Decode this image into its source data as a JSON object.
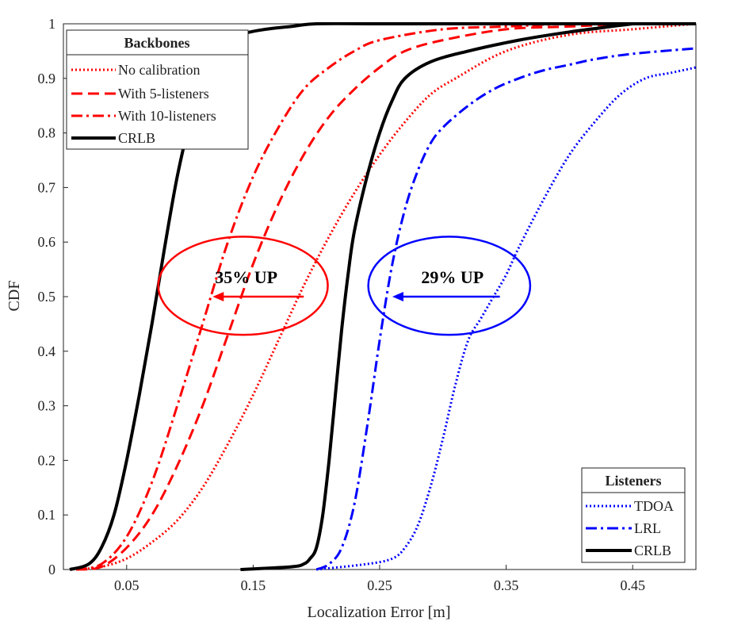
{
  "chart_data": {
    "type": "line",
    "title": "",
    "xlabel": "Localization Error [m]",
    "ylabel": "CDF",
    "xlim": [
      0,
      0.5
    ],
    "ylim": [
      0,
      1
    ],
    "xticks": [
      "0.05",
      "0.15",
      "0.25",
      "0.35",
      "0.45"
    ],
    "yticks": [
      "0",
      "0.1",
      "0.2",
      "0.3",
      "0.4",
      "0.5",
      "0.6",
      "0.7",
      "0.8",
      "0.9",
      "1"
    ],
    "grid": true,
    "colors": {
      "red": "#ff0000",
      "blue": "#0000ff",
      "black": "#000000"
    },
    "legends": [
      {
        "title": "Backbones",
        "position": "top-left",
        "entries": [
          "No calibration",
          "With 5-listeners",
          "With 10-listeners",
          "CRLB"
        ]
      },
      {
        "title": "Listeners",
        "position": "bottom-right",
        "entries": [
          "TDOA",
          "LRL",
          "CRLB"
        ]
      }
    ],
    "series": [
      {
        "group": "Backbones",
        "name": "No calibration",
        "color": "#ff0000",
        "style": "dotted",
        "x": [
          0.01,
          0.03,
          0.05,
          0.07,
          0.09,
          0.11,
          0.13,
          0.15,
          0.17,
          0.19,
          0.21,
          0.23,
          0.25,
          0.27,
          0.29,
          0.31,
          0.35,
          0.4,
          0.45,
          0.5
        ],
        "y": [
          0,
          0.005,
          0.02,
          0.05,
          0.09,
          0.15,
          0.23,
          0.32,
          0.42,
          0.52,
          0.61,
          0.69,
          0.76,
          0.82,
          0.87,
          0.9,
          0.95,
          0.98,
          0.99,
          1.0
        ]
      },
      {
        "group": "Backbones",
        "name": "With 5-listeners",
        "color": "#ff0000",
        "style": "dashed",
        "x": [
          0.01,
          0.03,
          0.05,
          0.07,
          0.09,
          0.11,
          0.13,
          0.15,
          0.17,
          0.19,
          0.21,
          0.23,
          0.25,
          0.27,
          0.3,
          0.35,
          0.4,
          0.45,
          0.5
        ],
        "y": [
          0,
          0.005,
          0.04,
          0.1,
          0.19,
          0.3,
          0.43,
          0.56,
          0.67,
          0.76,
          0.83,
          0.88,
          0.92,
          0.95,
          0.97,
          0.99,
          0.995,
          1.0,
          1.0
        ]
      },
      {
        "group": "Backbones",
        "name": "With 10-listeners",
        "color": "#ff0000",
        "style": "dashdot",
        "x": [
          0.01,
          0.03,
          0.05,
          0.07,
          0.09,
          0.11,
          0.13,
          0.15,
          0.17,
          0.19,
          0.21,
          0.23,
          0.25,
          0.3,
          0.35,
          0.4,
          0.45,
          0.5
        ],
        "y": [
          0,
          0.01,
          0.06,
          0.16,
          0.3,
          0.45,
          0.6,
          0.72,
          0.81,
          0.88,
          0.92,
          0.95,
          0.97,
          0.99,
          0.995,
          1.0,
          1.0,
          1.0
        ]
      },
      {
        "group": "Backbones",
        "name": "CRLB",
        "color": "#000000",
        "style": "solid",
        "x": [
          0.005,
          0.02,
          0.03,
          0.04,
          0.05,
          0.06,
          0.07,
          0.08,
          0.09,
          0.1,
          0.11,
          0.12,
          0.13,
          0.14,
          0.16,
          0.18,
          0.2,
          0.25,
          0.3,
          0.4,
          0.5
        ],
        "y": [
          0,
          0.01,
          0.04,
          0.1,
          0.2,
          0.32,
          0.45,
          0.59,
          0.72,
          0.82,
          0.89,
          0.93,
          0.96,
          0.98,
          0.99,
          0.995,
          1.0,
          1.0,
          1.0,
          1.0,
          1.0
        ]
      },
      {
        "group": "Listeners",
        "name": "TDOA",
        "color": "#0000ff",
        "style": "dotted",
        "x": [
          0.2,
          0.24,
          0.26,
          0.27,
          0.28,
          0.29,
          0.3,
          0.31,
          0.32,
          0.33,
          0.34,
          0.35,
          0.36,
          0.38,
          0.4,
          0.42,
          0.44,
          0.46,
          0.48,
          0.5
        ],
        "y": [
          0,
          0.01,
          0.02,
          0.04,
          0.08,
          0.15,
          0.24,
          0.34,
          0.42,
          0.46,
          0.5,
          0.54,
          0.59,
          0.68,
          0.76,
          0.82,
          0.87,
          0.9,
          0.91,
          0.92
        ]
      },
      {
        "group": "Listeners",
        "name": "LRL",
        "color": "#0000ff",
        "style": "dashdot",
        "x": [
          0.2,
          0.21,
          0.22,
          0.23,
          0.24,
          0.25,
          0.26,
          0.27,
          0.28,
          0.29,
          0.3,
          0.32,
          0.34,
          0.36,
          0.38,
          0.4,
          0.42,
          0.45,
          0.5
        ],
        "y": [
          0,
          0.01,
          0.04,
          0.12,
          0.26,
          0.42,
          0.56,
          0.66,
          0.73,
          0.78,
          0.81,
          0.85,
          0.88,
          0.9,
          0.915,
          0.925,
          0.935,
          0.945,
          0.955
        ]
      },
      {
        "group": "Listeners",
        "name": "CRLB",
        "color": "#000000",
        "style": "solid",
        "x": [
          0.14,
          0.18,
          0.19,
          0.195,
          0.2,
          0.205,
          0.21,
          0.215,
          0.22,
          0.225,
          0.23,
          0.24,
          0.25,
          0.26,
          0.27,
          0.29,
          0.32,
          0.36,
          0.4,
          0.45
        ],
        "y": [
          0,
          0.005,
          0.01,
          0.02,
          0.04,
          0.1,
          0.2,
          0.32,
          0.44,
          0.54,
          0.62,
          0.72,
          0.8,
          0.86,
          0.9,
          0.93,
          0.95,
          0.97,
          0.985,
          1.0
        ]
      }
    ],
    "annotations": [
      {
        "text": "35% UP",
        "color": "#ff0000",
        "center": [
          0.142,
          0.52
        ],
        "radius": [
          0.067,
          0.09
        ],
        "arrow_from": [
          0.19,
          0.5
        ],
        "arrow_to": [
          0.118,
          0.5
        ]
      },
      {
        "text": "29% UP",
        "color": "#0000ff",
        "center": [
          0.305,
          0.52
        ],
        "radius": [
          0.064,
          0.09
        ],
        "arrow_from": [
          0.345,
          0.5
        ],
        "arrow_to": [
          0.26,
          0.5
        ]
      }
    ]
  }
}
